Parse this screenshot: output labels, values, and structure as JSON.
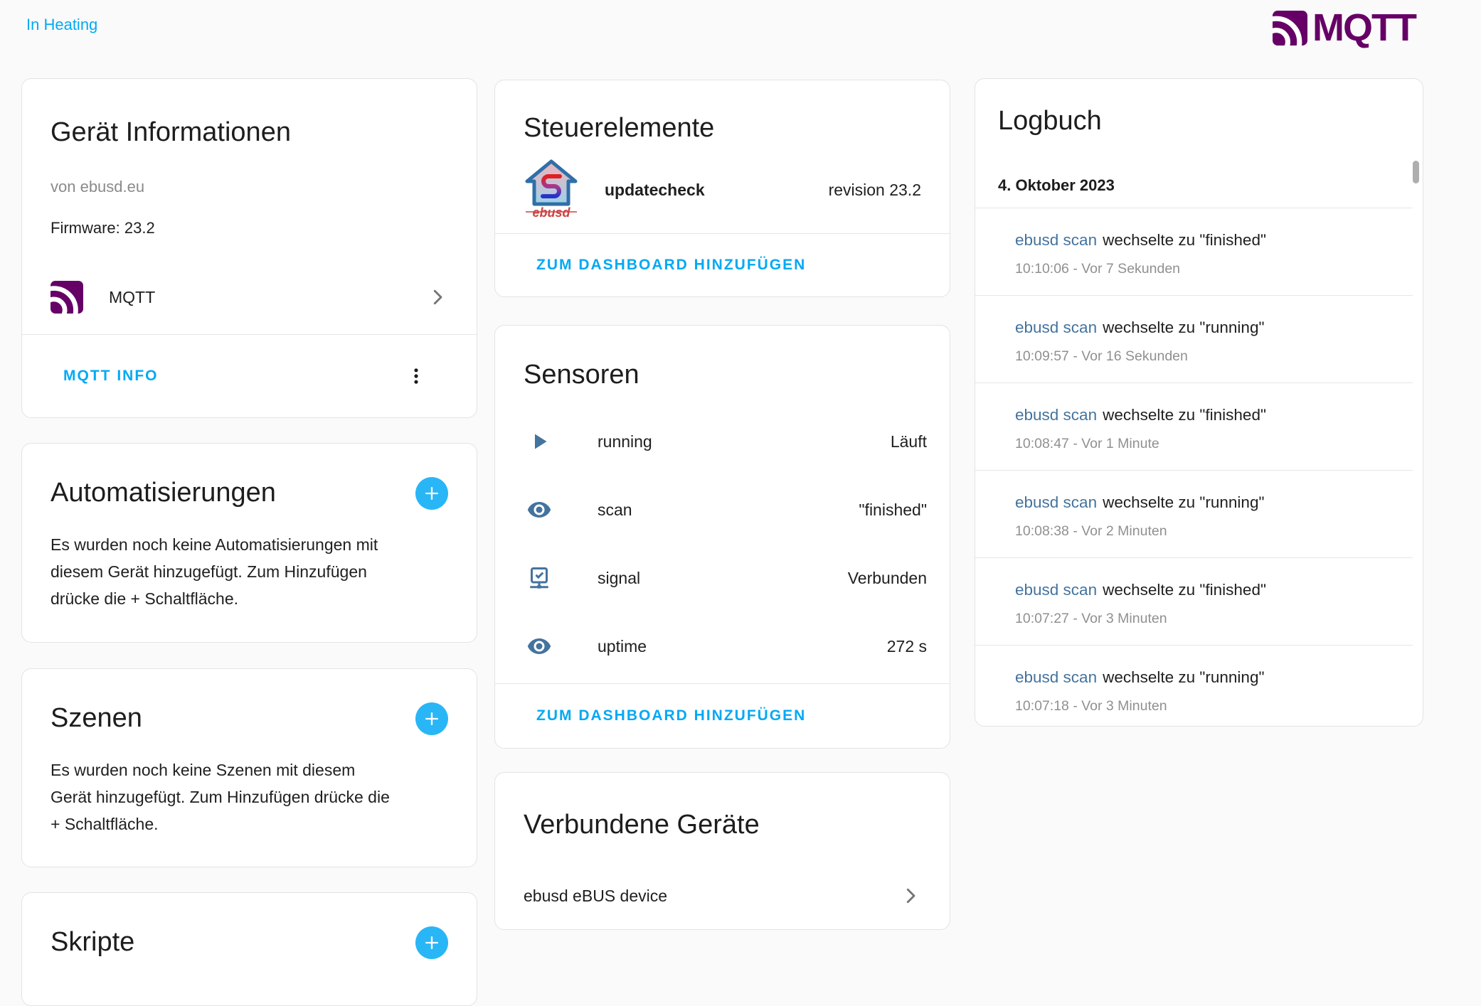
{
  "header": {
    "back_link": "In Heating",
    "logo_text": "MQTT"
  },
  "device_info": {
    "title": "Gerät Informationen",
    "manufacturer": "von ebusd.eu",
    "firmware": "Firmware: 23.2",
    "integration_name": "MQTT",
    "action_label": "MQTT INFO"
  },
  "automations": {
    "title": "Automatisierungen",
    "empty_text": "Es wurden noch keine Automatisierungen mit diesem Gerät hinzugefügt. Zum Hinzufügen drücke die + Schaltfläche."
  },
  "scenes": {
    "title": "Szenen",
    "empty_text": "Es wurden noch keine Szenen mit diesem Gerät hinzugefügt. Zum Hinzufügen drücke die + Schaltfläche."
  },
  "scripts": {
    "title": "Skripte"
  },
  "controls": {
    "title": "Steuerelemente",
    "row": {
      "icon": "ebusd-logo",
      "name": "updatecheck",
      "value": "revision 23.2"
    },
    "action_label": "ZUM DASHBOARD HINZUFÜGEN"
  },
  "sensors": {
    "title": "Sensoren",
    "rows": [
      {
        "icon": "play-icon",
        "name": "running",
        "value": "Läuft"
      },
      {
        "icon": "eye-icon",
        "name": "scan",
        "value": "\"finished\""
      },
      {
        "icon": "network-check-icon",
        "name": "signal",
        "value": "Verbunden"
      },
      {
        "icon": "eye-icon",
        "name": "uptime",
        "value": "272 s"
      }
    ],
    "action_label": "ZUM DASHBOARD HINZUFÜGEN"
  },
  "connected_devices": {
    "title": "Verbundene Geräte",
    "device_name": "ebusd eBUS device"
  },
  "logbook": {
    "title": "Logbuch",
    "date_header": "4. Oktober 2023",
    "entries": [
      {
        "entity": "ebusd scan",
        "message": "wechselte zu \"finished\"",
        "time": "10:10:06 - Vor 7 Sekunden"
      },
      {
        "entity": "ebusd scan",
        "message": "wechselte zu \"running\"",
        "time": "10:09:57 - Vor 16 Sekunden"
      },
      {
        "entity": "ebusd scan",
        "message": "wechselte zu \"finished\"",
        "time": "10:08:47 - Vor 1 Minute"
      },
      {
        "entity": "ebusd scan",
        "message": "wechselte zu \"running\"",
        "time": "10:08:38 - Vor 2 Minuten"
      },
      {
        "entity": "ebusd scan",
        "message": "wechselte zu \"finished\"",
        "time": "10:07:27 - Vor 3 Minuten"
      },
      {
        "entity": "ebusd scan",
        "message": "wechselte zu \"running\"",
        "time": "10:07:18 - Vor 3 Minuten"
      }
    ]
  },
  "colors": {
    "accent_blue": "#03a9f4",
    "plus_button_blue": "#29b6f6",
    "entity_link_blue": "#44739e",
    "mqtt_purple": "#660066"
  }
}
